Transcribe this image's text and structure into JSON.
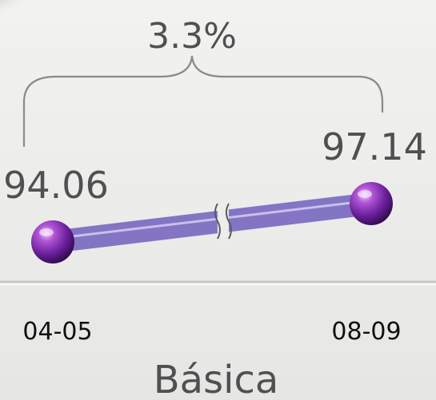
{
  "chart_data": {
    "type": "line",
    "categories": [
      "04-05",
      "08-09"
    ],
    "values": [
      94.06,
      97.14
    ],
    "value_labels": [
      "94.06",
      "97.14"
    ],
    "change_label": "3.3%",
    "axis_break": true,
    "title": "Básica",
    "colors": {
      "line": "#7868c0",
      "marker": "#6a1f9a",
      "text": "#505050",
      "category_text": "#111111",
      "bracket": "#8a8a8a",
      "background": "#ededeb"
    }
  }
}
